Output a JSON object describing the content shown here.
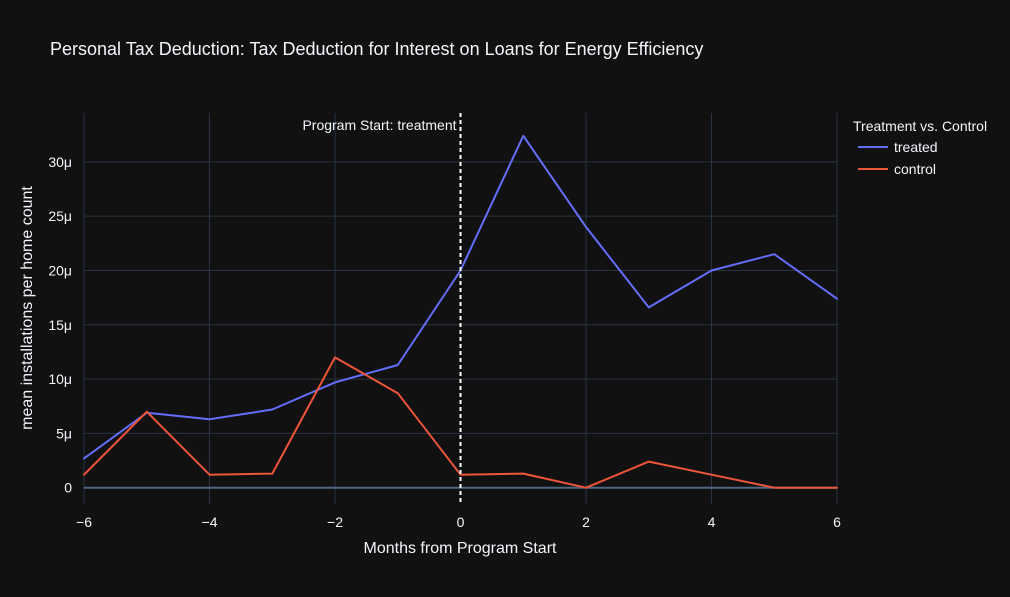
{
  "colors": {
    "background": "#111111",
    "grid": "#283442",
    "zeroline": "#506784",
    "text": "#f2f5fa",
    "treated": "#636efa",
    "control": "#ef553b",
    "vline": "#ffffff"
  },
  "chart_data": {
    "type": "line",
    "title": "Personal Tax Deduction: Tax Deduction for Interest on Loans for Energy Efficiency",
    "xlabel": "Months from Program Start",
    "ylabel": "mean installations per home count",
    "xlim": [
      -6,
      6
    ],
    "ylim": [
      -1.5,
      34.5
    ],
    "x_ticks": [
      -6,
      -4,
      -2,
      0,
      2,
      4,
      6
    ],
    "x_tick_labels": [
      "−6",
      "−4",
      "−2",
      "0",
      "2",
      "4",
      "6"
    ],
    "y_ticks": [
      0,
      5,
      10,
      15,
      20,
      25,
      30
    ],
    "y_tick_labels": [
      "0",
      "5μ",
      "10μ",
      "15μ",
      "20μ",
      "25μ",
      "30μ"
    ],
    "grid": true,
    "legend": {
      "title": "Treatment vs. Control",
      "position": "top-right, outside plot"
    },
    "annotation": {
      "text": "Program Start: treatment",
      "x": 0,
      "style": "dashed vertical line"
    },
    "x": [
      -6,
      -5,
      -4,
      -3,
      -2,
      -1,
      0,
      1,
      2,
      3,
      4,
      5,
      6
    ],
    "series": [
      {
        "name": "treated",
        "color": "#636efa",
        "values": [
          2.7,
          6.9,
          6.3,
          7.2,
          9.7,
          11.3,
          20.0,
          32.4,
          24.0,
          16.6,
          20.0,
          21.5,
          17.4
        ]
      },
      {
        "name": "control",
        "color": "#ef553b",
        "values": [
          1.2,
          7.0,
          1.2,
          1.3,
          12.0,
          8.7,
          1.2,
          1.3,
          0.0,
          2.4,
          1.2,
          0.0,
          0.0
        ]
      }
    ]
  }
}
